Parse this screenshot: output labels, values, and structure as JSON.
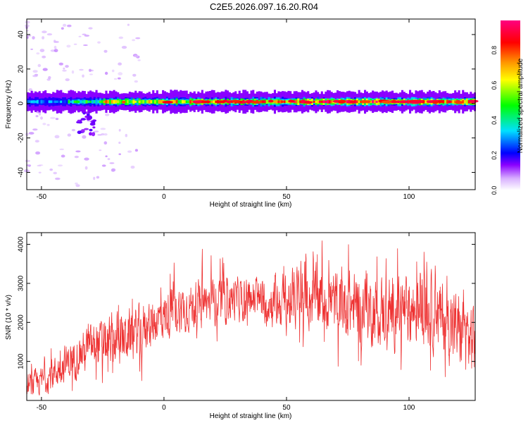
{
  "title": "C2E5.2026.097.16.20.R04",
  "colors": {
    "snr_line": "#ee3333",
    "axis": "#000000",
    "spectrogram_background": "#ffffff"
  },
  "chart_data": [
    {
      "type": "heatmap",
      "name": "spectrogram",
      "xlabel": "Height of straight line (km)",
      "ylabel": "Frequency (Hz)",
      "xlim": [
        -56,
        127
      ],
      "ylim": [
        -50,
        49
      ],
      "xticks": [
        -50,
        0,
        50,
        100
      ],
      "yticks": [
        -40,
        -20,
        0,
        20,
        40
      ],
      "colorbar": {
        "label": "Normalized spectral amplitude",
        "range": [
          0,
          0.97
        ],
        "ticks": [
          0.0,
          0.2,
          0.4,
          0.6,
          0.8
        ],
        "tick_labels": [
          "0.0",
          "0.2",
          "0.4",
          "0.6",
          "0.8"
        ]
      },
      "band": {
        "center_hz": 1,
        "half_width_hz": 3,
        "segments": [
          {
            "x_range": [
              -56,
              -40
            ],
            "peak_amplitude": 0.35
          },
          {
            "x_range": [
              -40,
              -25
            ],
            "peak_amplitude": 0.5
          },
          {
            "x_range": [
              -25,
              10
            ],
            "peak_amplitude": 0.75
          },
          {
            "x_range": [
              10,
              50
            ],
            "peak_amplitude": 0.85
          },
          {
            "x_range": [
              50,
              127
            ],
            "peak_amplitude": 0.95
          }
        ],
        "lower_tail": {
          "x_range": [
            -35,
            -28
          ],
          "freq_range_hz": [
            -18,
            -3
          ]
        },
        "scatter_region": {
          "x_range": [
            -56,
            -10
          ],
          "freq_range_hz": [
            -49,
            48
          ]
        }
      }
    },
    {
      "type": "line",
      "name": "snr",
      "xlabel": "Height of straight line (km)",
      "ylabel": "SNR (10 * v/v)",
      "xlim": [
        -56,
        127
      ],
      "ylim": [
        0,
        4300
      ],
      "xticks": [
        -50,
        0,
        50,
        100
      ],
      "yticks": [
        1000,
        2000,
        3000,
        4000
      ],
      "envelope": {
        "x": [
          -56,
          -50,
          -45,
          -40,
          -35,
          -30,
          -25,
          -20,
          -15,
          -10,
          -5,
          0,
          5,
          10,
          15,
          20,
          25,
          30,
          35,
          40,
          45,
          50,
          55,
          60,
          65,
          70,
          75,
          80,
          85,
          90,
          95,
          100,
          105,
          110,
          115,
          120,
          125,
          127
        ],
        "y": [
          350,
          500,
          700,
          950,
          1150,
          1350,
          1450,
          1550,
          1650,
          1800,
          2000,
          2150,
          2300,
          2400,
          2450,
          2500,
          2550,
          2600,
          2600,
          2550,
          2500,
          2500,
          2650,
          2600,
          2600,
          2500,
          2450,
          2400,
          2300,
          2300,
          2250,
          2300,
          2350,
          2250,
          2050,
          1800,
          1600,
          1600
        ]
      },
      "noise_amplitude": [
        [
          -56,
          400
        ],
        [
          -20,
          900
        ],
        [
          0,
          800
        ],
        [
          40,
          700
        ],
        [
          50,
          1000
        ],
        [
          127,
          1300
        ]
      ]
    }
  ]
}
